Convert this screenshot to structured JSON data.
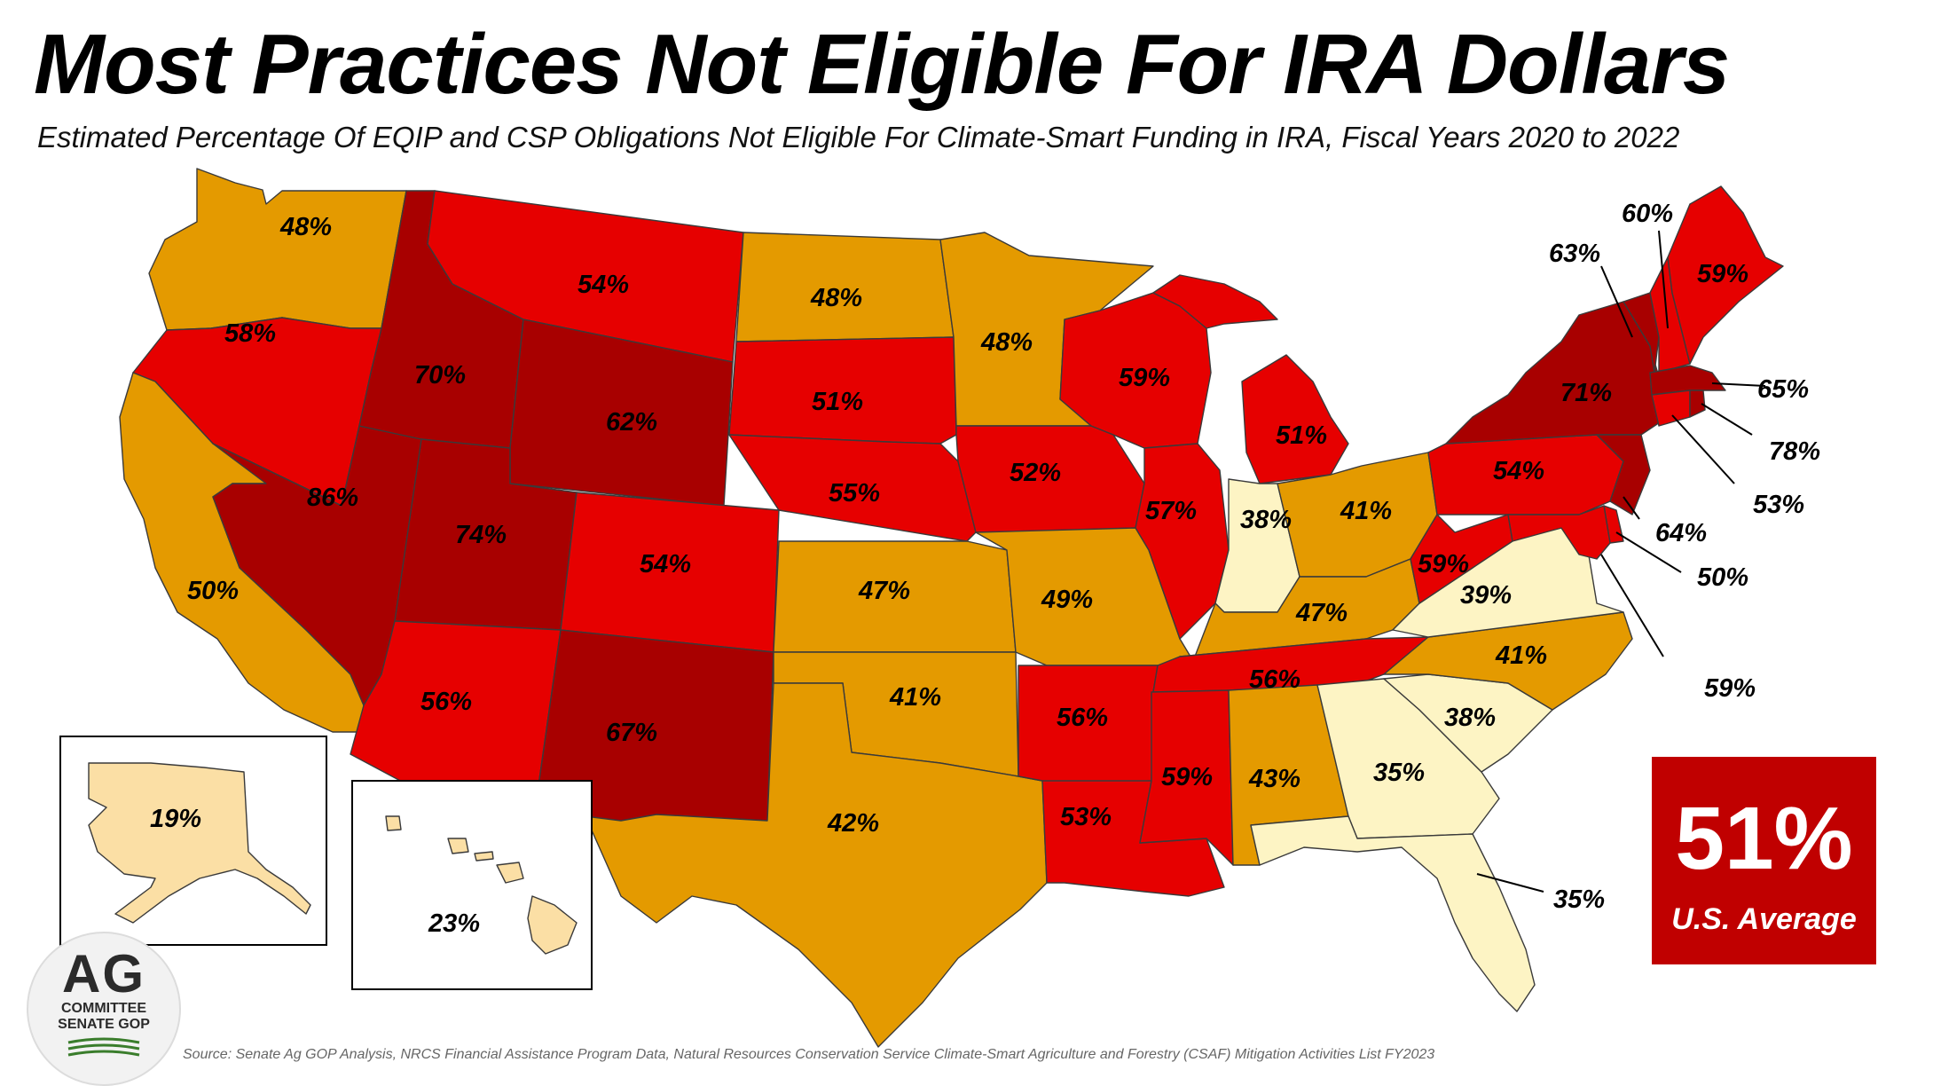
{
  "title": "Most Practices Not Eligible For IRA Dollars",
  "subtitle": "Estimated Percentage Of EQIP and CSP Obligations Not Eligible For Climate-Smart Funding in IRA, Fiscal Years 2020 to 2022",
  "colors": {
    "darkred": "#a80000",
    "red": "#e60000",
    "orange": "#e49a00",
    "pale": "#fdf4c4",
    "peach": "#fbdfa5",
    "average_box": "#c00000"
  },
  "states": {
    "WA": "48%",
    "OR": "58%",
    "CA": "50%",
    "NV": "86%",
    "ID": "70%",
    "MT": "54%",
    "WY": "62%",
    "UT": "74%",
    "AZ": "56%",
    "CO": "54%",
    "NM": "67%",
    "ND": "48%",
    "SD": "51%",
    "NE": "55%",
    "KS": "47%",
    "OK": "41%",
    "TX": "42%",
    "MN": "48%",
    "IA": "52%",
    "MO": "49%",
    "AR": "56%",
    "LA": "53%",
    "WI": "59%",
    "IL": "57%",
    "MI": "51%",
    "IN": "38%",
    "OH": "41%",
    "KY": "47%",
    "TN": "56%",
    "MS": "59%",
    "AL": "43%",
    "GA": "35%",
    "FL": "35%",
    "SC": "38%",
    "NC": "41%",
    "VA": "39%",
    "WV": "59%",
    "PA": "54%",
    "NY": "71%",
    "VT": "63%",
    "NH": "60%",
    "ME": "59%",
    "MA": "65%",
    "RI": "78%",
    "CT": "53%",
    "NJ": "64%",
    "DE": "50%",
    "MD": "59%",
    "AK": "19%",
    "HI": "23%"
  },
  "average": {
    "value": "51%",
    "label": "U.S. Average"
  },
  "logo": {
    "big": "AG",
    "line1": "COMMITTEE",
    "line2": "SENATE GOP"
  },
  "source": "Source: Senate Ag GOP Analysis, NRCS Financial Assistance Program Data, Natural Resources Conservation Service Climate-Smart Agriculture and Forestry (CSAF) Mitigation Activities List FY2023"
}
